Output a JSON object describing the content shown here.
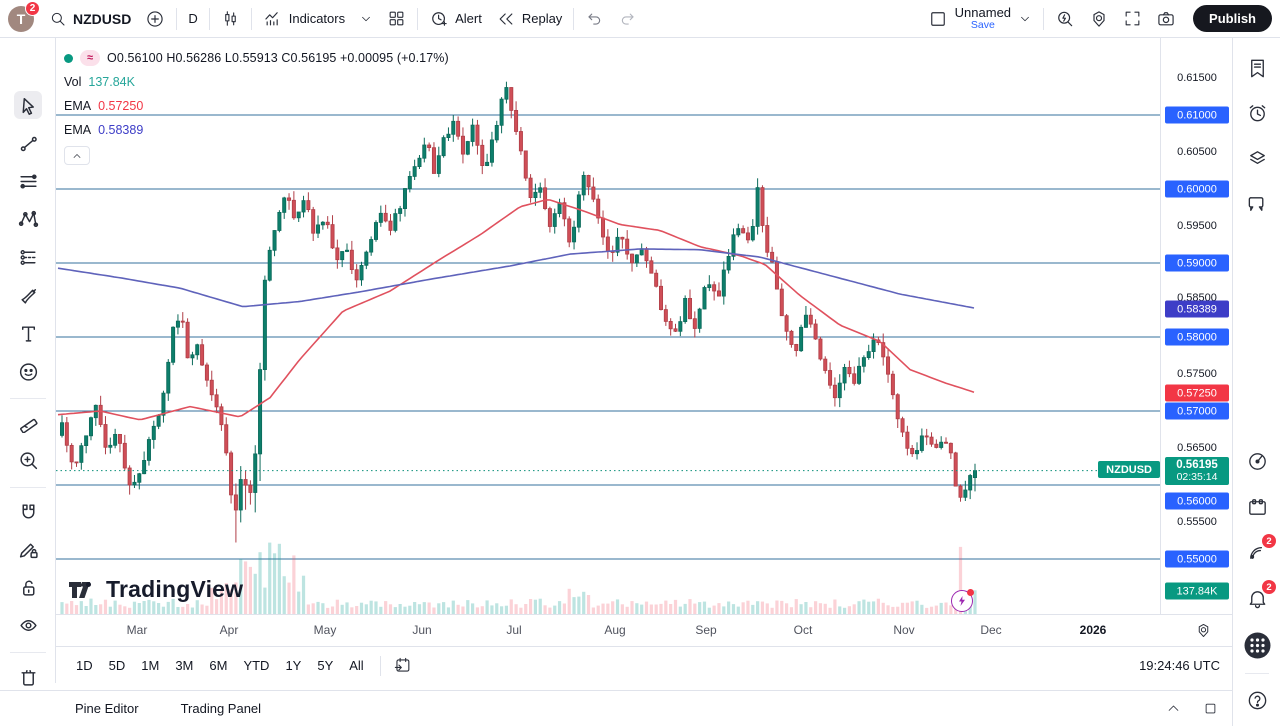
{
  "top": {
    "user_badge": "2",
    "avatar_letter": "T",
    "symbol": "NZDUSD",
    "interval": "D",
    "indicators_label": "Indicators",
    "alert_label": "Alert",
    "replay_label": "Replay",
    "layout_name": "Unnamed",
    "save_label": "Save",
    "publish_label": "Publish"
  },
  "legend": {
    "ohlc_text": "O0.56100  H0.56286  L0.55913  C0.56195  +0.00095 (+0.17%)",
    "flag": "≈",
    "vol_label": "Vol",
    "vol_value": "137.84K",
    "ema1_label": "EMA",
    "ema1_value": "0.57250",
    "ema2_label": "EMA",
    "ema2_value": "0.58389"
  },
  "watermark": "TradingView",
  "chart_data": {
    "type": "candlestick",
    "symbol": "NZDUSD",
    "interval": "D",
    "last_bar": {
      "open": 0.561,
      "high": 0.56286,
      "low": 0.55913,
      "close": 0.56195,
      "change": "+0.00095",
      "change_pct": "+0.17%"
    },
    "current_price": 0.56195,
    "countdown": "02:35:14",
    "volume_last": "137.84K",
    "emas": [
      {
        "name": "EMA",
        "value": 0.5725,
        "color": "#e0515e"
      },
      {
        "name": "EMA",
        "value": 0.58389,
        "color": "#5f63bb"
      }
    ],
    "levels": [
      0.55,
      0.56,
      0.57,
      0.58,
      0.59,
      0.6,
      0.61
    ],
    "ylim": [
      0.5465,
      0.6175
    ],
    "grid": false,
    "bars_count": 190,
    "seed": 5,
    "y_ticks": [
      {
        "label": "0.61500",
        "y": 78,
        "style": "plain"
      },
      {
        "label": "0.61000",
        "y": 115,
        "style": "blue"
      },
      {
        "label": "0.60500",
        "y": 152,
        "style": "plain"
      },
      {
        "label": "0.60000",
        "y": 189,
        "style": "blue"
      },
      {
        "label": "0.59500",
        "y": 226,
        "style": "plain"
      },
      {
        "label": "0.59000",
        "y": 263,
        "style": "blue"
      },
      {
        "label": "0.58500",
        "y": 298,
        "style": "plain"
      },
      {
        "label": "0.58389",
        "y": 309,
        "style": "indigo"
      },
      {
        "label": "0.58000",
        "y": 337,
        "style": "blue"
      },
      {
        "label": "0.57500",
        "y": 374,
        "style": "plain"
      },
      {
        "label": "0.57250",
        "y": 393,
        "style": "red"
      },
      {
        "label": "0.57000",
        "y": 411,
        "style": "blue"
      },
      {
        "label": "0.56500",
        "y": 448,
        "style": "plain"
      },
      {
        "label": "0.56000",
        "y": 501,
        "style": "blue"
      },
      {
        "label": "0.55500",
        "y": 522,
        "style": "plain"
      },
      {
        "label": "0.55000",
        "y": 559,
        "style": "blue"
      },
      {
        "label": "137.84K",
        "y": 591,
        "style": "teal"
      }
    ],
    "main_badge": {
      "price": "0.56195",
      "countdown": "02:35:14",
      "y": 471
    },
    "x_ticks": [
      {
        "label": "Mar",
        "x": 137
      },
      {
        "label": "Apr",
        "x": 229
      },
      {
        "label": "May",
        "x": 325
      },
      {
        "label": "Jun",
        "x": 422
      },
      {
        "label": "Jul",
        "x": 514
      },
      {
        "label": "Aug",
        "x": 615
      },
      {
        "label": "Sep",
        "x": 706
      },
      {
        "label": "Oct",
        "x": 803
      },
      {
        "label": "Nov",
        "x": 904
      },
      {
        "label": "Dec",
        "x": 991
      },
      {
        "label": "2026",
        "x": 1093,
        "year": true
      }
    ],
    "price_path": [
      [
        58,
        0.5655
      ],
      [
        68,
        0.5685
      ],
      [
        78,
        0.5615
      ],
      [
        88,
        0.5655
      ],
      [
        100,
        0.5715
      ],
      [
        112,
        0.5645
      ],
      [
        122,
        0.5672
      ],
      [
        135,
        0.5592
      ],
      [
        150,
        0.564
      ],
      [
        165,
        0.57
      ],
      [
        178,
        0.5815
      ],
      [
        186,
        0.583
      ],
      [
        194,
        0.576
      ],
      [
        203,
        0.5788
      ],
      [
        212,
        0.5738
      ],
      [
        224,
        0.5705
      ],
      [
        233,
        0.562
      ],
      [
        240,
        0.5555
      ],
      [
        247,
        0.5625
      ],
      [
        254,
        0.5572
      ],
      [
        261,
        0.566
      ],
      [
        270,
        0.589
      ],
      [
        281,
        0.5955
      ],
      [
        292,
        0.6
      ],
      [
        300,
        0.5958
      ],
      [
        310,
        0.5985
      ],
      [
        320,
        0.5938
      ],
      [
        330,
        0.5968
      ],
      [
        340,
        0.5902
      ],
      [
        350,
        0.5922
      ],
      [
        360,
        0.5868
      ],
      [
        372,
        0.592
      ],
      [
        385,
        0.5972
      ],
      [
        395,
        0.5942
      ],
      [
        408,
        0.5992
      ],
      [
        420,
        0.6035
      ],
      [
        432,
        0.606
      ],
      [
        440,
        0.6022
      ],
      [
        450,
        0.6072
      ],
      [
        460,
        0.6088
      ],
      [
        468,
        0.6042
      ],
      [
        478,
        0.6082
      ],
      [
        490,
        0.6022
      ],
      [
        500,
        0.6082
      ],
      [
        510,
        0.6138
      ],
      [
        518,
        0.6102
      ],
      [
        526,
        0.6052
      ],
      [
        535,
        0.5992
      ],
      [
        545,
        0.6002
      ],
      [
        555,
        0.5952
      ],
      [
        565,
        0.5982
      ],
      [
        575,
        0.5922
      ],
      [
        588,
        0.6022
      ],
      [
        596,
        0.5992
      ],
      [
        605,
        0.5952
      ],
      [
        615,
        0.5902
      ],
      [
        625,
        0.5938
      ],
      [
        635,
        0.5902
      ],
      [
        645,
        0.5922
      ],
      [
        655,
        0.5892
      ],
      [
        668,
        0.5832
      ],
      [
        680,
        0.5802
      ],
      [
        690,
        0.5848
      ],
      [
        700,
        0.5812
      ],
      [
        712,
        0.5882
      ],
      [
        722,
        0.5852
      ],
      [
        735,
        0.5922
      ],
      [
        745,
        0.5952
      ],
      [
        755,
        0.5922
      ],
      [
        762,
        0.6002
      ],
      [
        770,
        0.5932
      ],
      [
        780,
        0.5882
      ],
      [
        790,
        0.5812
      ],
      [
        800,
        0.5782
      ],
      [
        812,
        0.5832
      ],
      [
        820,
        0.5792
      ],
      [
        830,
        0.5752
      ],
      [
        840,
        0.5722
      ],
      [
        850,
        0.5762
      ],
      [
        860,
        0.5742
      ],
      [
        870,
        0.5772
      ],
      [
        882,
        0.5802
      ],
      [
        890,
        0.5772
      ],
      [
        900,
        0.57
      ],
      [
        908,
        0.5662
      ],
      [
        916,
        0.5638
      ],
      [
        924,
        0.5658
      ],
      [
        932,
        0.5668
      ],
      [
        940,
        0.5655
      ],
      [
        948,
        0.5665
      ],
      [
        956,
        0.5638
      ],
      [
        962,
        0.559
      ],
      [
        968,
        0.5582
      ],
      [
        972,
        0.5605
      ],
      [
        975,
        0.56195
      ]
    ],
    "ema_fast_path": [
      [
        58,
        0.5695
      ],
      [
        100,
        0.57
      ],
      [
        140,
        0.5688
      ],
      [
        190,
        0.5706
      ],
      [
        240,
        0.5692
      ],
      [
        270,
        0.5718
      ],
      [
        300,
        0.577
      ],
      [
        343,
        0.5835
      ],
      [
        390,
        0.5862
      ],
      [
        440,
        0.5905
      ],
      [
        480,
        0.5938
      ],
      [
        520,
        0.5976
      ],
      [
        548,
        0.5986
      ],
      [
        580,
        0.5972
      ],
      [
        620,
        0.5952
      ],
      [
        660,
        0.5944
      ],
      [
        700,
        0.5922
      ],
      [
        740,
        0.591
      ],
      [
        765,
        0.5898
      ],
      [
        800,
        0.5856
      ],
      [
        840,
        0.5816
      ],
      [
        880,
        0.5794
      ],
      [
        910,
        0.5756
      ],
      [
        945,
        0.5738
      ],
      [
        975,
        0.5725
      ]
    ],
    "ema_slow_path": [
      [
        58,
        0.5893
      ],
      [
        120,
        0.588
      ],
      [
        180,
        0.5866
      ],
      [
        243,
        0.5841
      ],
      [
        300,
        0.5848
      ],
      [
        360,
        0.5861
      ],
      [
        430,
        0.5878
      ],
      [
        510,
        0.5896
      ],
      [
        570,
        0.5912
      ],
      [
        640,
        0.5919
      ],
      [
        700,
        0.5918
      ],
      [
        760,
        0.5908
      ],
      [
        830,
        0.5883
      ],
      [
        900,
        0.5858
      ],
      [
        975,
        0.5839
      ]
    ],
    "colors": {
      "up_fill": "#0d7e6b",
      "up_stroke": "#0b6a5a",
      "down_fill": "#cf4e57",
      "down_stroke": "#b03e47",
      "vol_up": "rgba(38,166,154,0.30)",
      "vol_down": "rgba(239,83,99,0.26)",
      "level_line": "#35719c",
      "current_line": "#0b8f7a",
      "badge_blue": "#2962ff",
      "badge_teal": "#089981",
      "badge_red": "#f23645",
      "badge_indigo": "#3d3dc7"
    }
  },
  "left_toolbar": [
    {
      "name": "cursor",
      "selected": true
    },
    {
      "name": "trend-line"
    },
    {
      "name": "fib-retracement"
    },
    {
      "name": "xabcd-pattern"
    },
    {
      "name": "forecast"
    },
    {
      "name": "brush"
    },
    {
      "name": "text"
    },
    {
      "name": "emoji"
    },
    {
      "name": "divider"
    },
    {
      "name": "ruler"
    },
    {
      "name": "zoom-in"
    },
    {
      "name": "divider"
    },
    {
      "name": "magnet"
    },
    {
      "name": "draw-lock"
    },
    {
      "name": "lock-all"
    },
    {
      "name": "hide-all"
    },
    {
      "name": "divider"
    },
    {
      "name": "remove-all"
    }
  ],
  "right_sidebar": [
    {
      "name": "watchlist",
      "y": 68
    },
    {
      "name": "alerts",
      "y": 113
    },
    {
      "name": "layers",
      "y": 158
    },
    {
      "name": "chats",
      "y": 204
    },
    {
      "name": "radar",
      "y": 461
    },
    {
      "name": "calendar",
      "y": 507
    },
    {
      "name": "streams",
      "y": 552,
      "badge": "2"
    },
    {
      "name": "notifications",
      "y": 598,
      "badge": "2"
    },
    {
      "name": "apps",
      "y": 645
    },
    {
      "name": "divider",
      "y": 673
    },
    {
      "name": "help",
      "y": 700
    }
  ],
  "range_toolbar": {
    "ranges": [
      "1D",
      "5D",
      "1M",
      "3M",
      "6M",
      "YTD",
      "1Y",
      "5Y",
      "All"
    ],
    "clock": "19:24:46 UTC"
  },
  "status_bar": {
    "pine_editor": "Pine Editor",
    "trading_panel": "Trading Panel"
  }
}
